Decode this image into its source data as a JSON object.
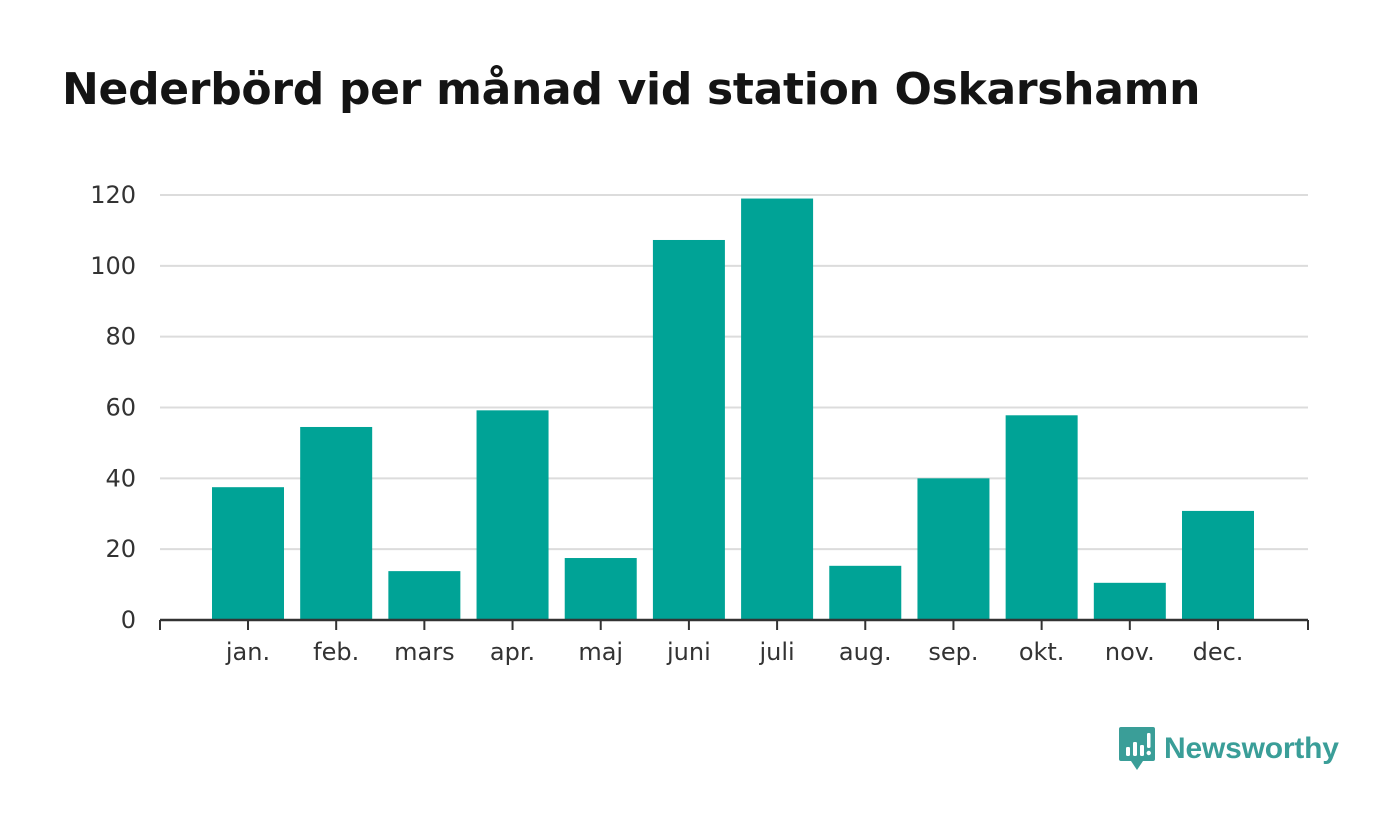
{
  "chart_data": {
    "type": "bar",
    "title": "Nederbörd per månad vid station Oskarshamn",
    "categories": [
      "jan.",
      "feb.",
      "mars",
      "apr.",
      "maj",
      "juni",
      "juli",
      "aug.",
      "sep.",
      "okt.",
      "nov.",
      "dec."
    ],
    "values": [
      37.5,
      54.5,
      13.8,
      59.2,
      17.5,
      107.3,
      119.0,
      15.3,
      40.0,
      57.8,
      10.5,
      30.8
    ],
    "ylim": [
      0,
      120
    ],
    "yticks": [
      0,
      20,
      40,
      60,
      80,
      100,
      120
    ],
    "grid": true,
    "bar_color": "#00a396",
    "xlabel": "",
    "ylabel": ""
  },
  "brand": {
    "name": "Newsworthy",
    "color": "#3a9e98",
    "icon": "newsworthy-logo-icon"
  }
}
